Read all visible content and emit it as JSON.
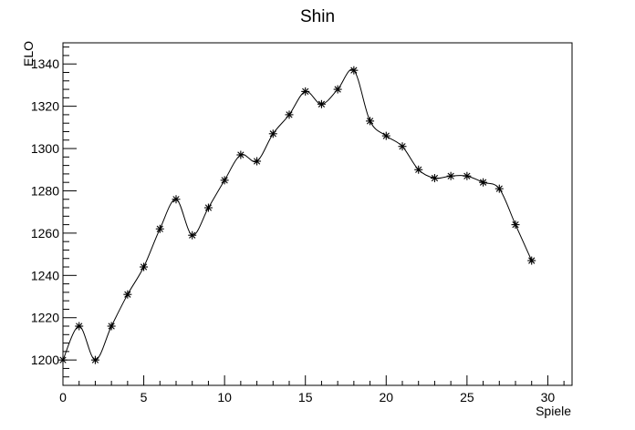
{
  "chart_data": {
    "type": "line",
    "title": "Shin",
    "xlabel": "Spiele",
    "ylabel": "ELO",
    "xlim": [
      0,
      31.5
    ],
    "ylim": [
      1188,
      1350
    ],
    "x_ticks": [
      0,
      5,
      10,
      15,
      20,
      25,
      30
    ],
    "y_ticks": [
      1200,
      1220,
      1240,
      1260,
      1280,
      1300,
      1320,
      1340
    ],
    "grid": false,
    "marker": "asterisk",
    "line_color": "#000000",
    "series": [
      {
        "x": [
          0,
          1,
          2,
          3,
          4,
          5,
          6,
          7,
          8,
          9,
          10,
          11,
          12,
          13,
          14,
          15,
          16,
          17,
          18,
          19,
          20,
          21,
          22,
          23,
          24,
          25,
          26,
          27,
          28,
          29
        ],
        "y": [
          1200,
          1216,
          1200,
          1216,
          1231,
          1244,
          1262,
          1276,
          1259,
          1272,
          1285,
          1297,
          1294,
          1307,
          1316,
          1327,
          1321,
          1328,
          1337,
          1313,
          1306,
          1301,
          1290,
          1286,
          1287,
          1287,
          1284,
          1281,
          1264,
          1247
        ]
      }
    ]
  }
}
